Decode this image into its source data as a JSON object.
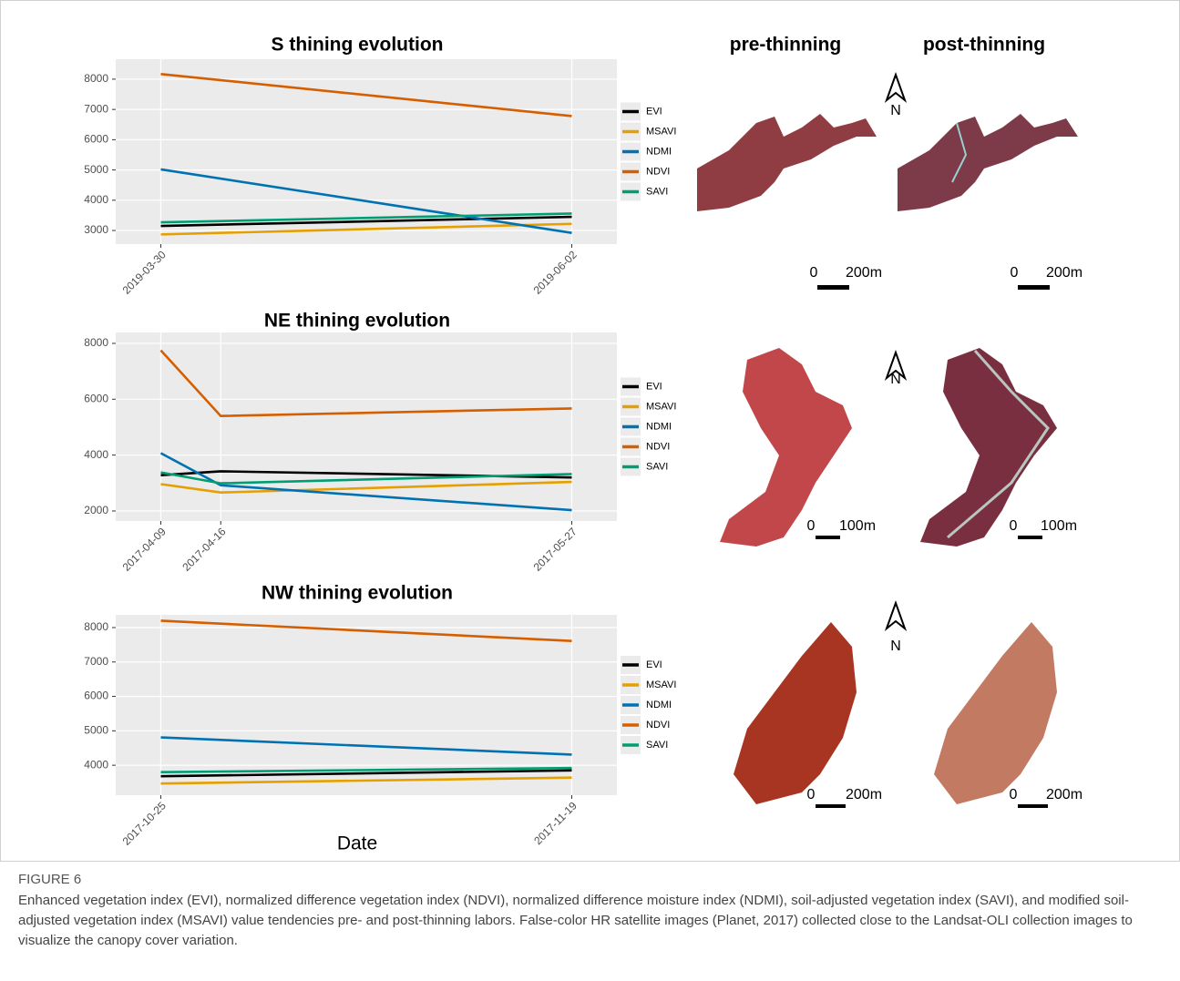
{
  "chart_data": [
    {
      "type": "line",
      "title": "S thining evolution",
      "x": [
        "2019-03-30",
        "2019-06-02"
      ],
      "series": [
        {
          "name": "EVI",
          "color": "#000000",
          "values": [
            3150,
            3450
          ]
        },
        {
          "name": "MSAVI",
          "color": "#E69F00",
          "values": [
            2870,
            3220
          ]
        },
        {
          "name": "NDMI",
          "color": "#0072B2",
          "values": [
            5020,
            2920
          ]
        },
        {
          "name": "NDVI",
          "color": "#D55E00",
          "values": [
            8170,
            6780
          ]
        },
        {
          "name": "SAVI",
          "color": "#009E73",
          "values": [
            3270,
            3560
          ]
        }
      ],
      "ylim": [
        2550,
        8660
      ],
      "yticks": [
        3000,
        4000,
        5000,
        6000,
        7000,
        8000
      ],
      "grid": true,
      "legend": "right"
    },
    {
      "type": "line",
      "title": "NE thining evolution",
      "x": [
        "2017-04-09",
        "2017-04-16",
        "2017-05-27"
      ],
      "series": [
        {
          "name": "EVI",
          "color": "#000000",
          "values": [
            3280,
            3420,
            3200
          ]
        },
        {
          "name": "MSAVI",
          "color": "#E69F00",
          "values": [
            2960,
            2660,
            3040
          ]
        },
        {
          "name": "NDMI",
          "color": "#0072B2",
          "values": [
            4070,
            2920,
            2030
          ]
        },
        {
          "name": "NDVI",
          "color": "#D55E00",
          "values": [
            7750,
            5400,
            5670
          ]
        },
        {
          "name": "SAVI",
          "color": "#009E73",
          "values": [
            3380,
            2990,
            3320
          ]
        }
      ],
      "ylim": [
        1640,
        8390
      ],
      "yticks": [
        2000,
        4000,
        6000,
        8000
      ],
      "grid": true,
      "legend": "right"
    },
    {
      "type": "line",
      "title": "NW thining evolution",
      "x": [
        "2017-10-25",
        "2017-11-19"
      ],
      "xlabel": "Date",
      "series": [
        {
          "name": "EVI",
          "color": "#000000",
          "values": [
            3680,
            3850
          ]
        },
        {
          "name": "MSAVI",
          "color": "#E69F00",
          "values": [
            3470,
            3640
          ]
        },
        {
          "name": "NDMI",
          "color": "#0072B2",
          "values": [
            4810,
            4310
          ]
        },
        {
          "name": "NDVI",
          "color": "#D55E00",
          "values": [
            8200,
            7610
          ]
        },
        {
          "name": "SAVI",
          "color": "#009E73",
          "values": [
            3800,
            3920
          ]
        }
      ],
      "ylim": [
        3130,
        8370
      ],
      "yticks": [
        4000,
        5000,
        6000,
        7000,
        8000
      ],
      "grid": true,
      "legend": "right"
    }
  ],
  "images": {
    "headers": [
      "pre-thinning",
      "post-thinning"
    ],
    "north": "N",
    "scale_bars": [
      {
        "zero": "0",
        "length": "200m"
      },
      {
        "zero": "0",
        "length": "200m"
      },
      {
        "zero": "0",
        "length": "100m"
      },
      {
        "zero": "0",
        "length": "100m"
      },
      {
        "zero": "0",
        "length": "200m"
      },
      {
        "zero": "0",
        "length": "200m"
      }
    ]
  },
  "figure": {
    "label": "FIGURE 6",
    "caption": "Enhanced vegetation index (EVI), normalized difference vegetation index (NDVI), normalized difference moisture index (NDMI), soil-adjusted vegetation index (SAVI), and modified soil-adjusted vegetation index (MSAVI) value tendencies pre- and post-thinning labors. False-color HR satellite images (Planet, 2017) collected close to the Landsat-OLI collection images to visualize the canopy cover variation."
  }
}
